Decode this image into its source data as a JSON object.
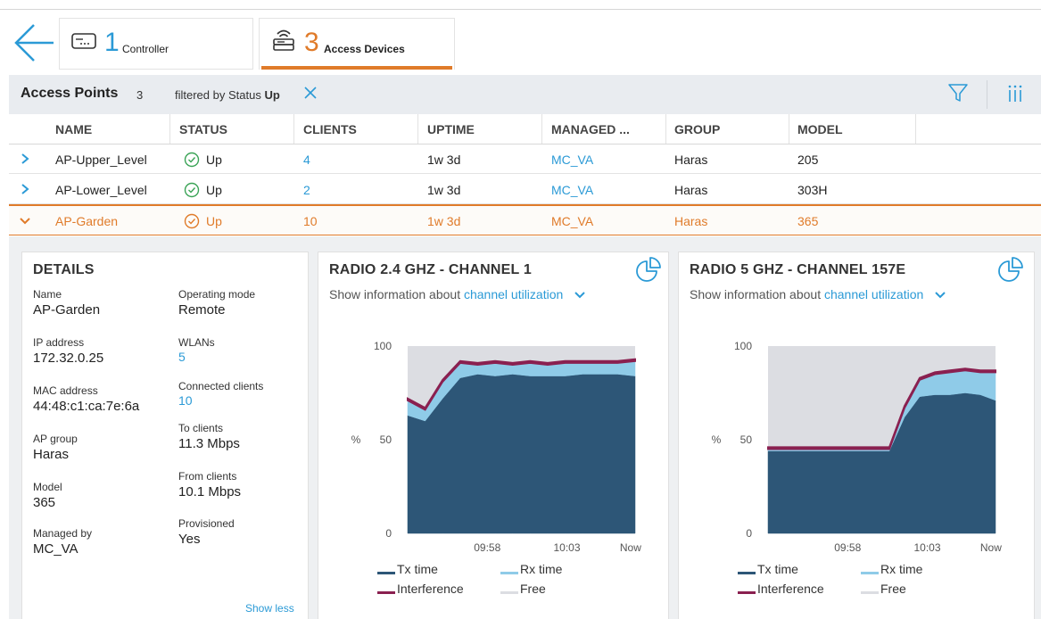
{
  "tabs": [
    {
      "count": "1",
      "label": "Controller",
      "icon": "controller-icon"
    },
    {
      "count": "3",
      "label": "Access Devices",
      "icon": "access-device-icon"
    }
  ],
  "header": {
    "title": "Access Points",
    "count": "3",
    "filter_prefix": "filtered by Status",
    "filter_value": "Up"
  },
  "columns": [
    "NAME",
    "STATUS",
    "CLIENTS",
    "UPTIME",
    "MANAGED ...",
    "GROUP",
    "MODEL"
  ],
  "rows": [
    {
      "name": "AP-Upper_Level",
      "status": "Up",
      "clients": "4",
      "uptime": "1w 3d",
      "managed": "MC_VA",
      "group": "Haras",
      "model": "205"
    },
    {
      "name": "AP-Lower_Level",
      "status": "Up",
      "clients": "2",
      "uptime": "1w 3d",
      "managed": "MC_VA",
      "group": "Haras",
      "model": "303H"
    },
    {
      "name": "AP-Garden",
      "status": "Up",
      "clients": "10",
      "uptime": "1w 3d",
      "managed": "MC_VA",
      "group": "Haras",
      "model": "365"
    }
  ],
  "details": {
    "title": "DETAILS",
    "left": [
      {
        "k": "Name",
        "v": "AP-Garden"
      },
      {
        "k": "IP address",
        "v": "172.32.0.25"
      },
      {
        "k": "MAC address",
        "v": "44:48:c1:ca:7e:6a"
      },
      {
        "k": "AP group",
        "v": "Haras"
      },
      {
        "k": "Model",
        "v": "365"
      },
      {
        "k": "Managed by",
        "v": "MC_VA"
      }
    ],
    "right": [
      {
        "k": "Operating mode",
        "v": "Remote"
      },
      {
        "k": "WLANs",
        "v": "5"
      },
      {
        "k": "Connected clients",
        "v": "10"
      },
      {
        "k": "To clients",
        "v": "11.3 Mbps"
      },
      {
        "k": "From clients",
        "v": "10.1 Mbps"
      },
      {
        "k": "Provisioned",
        "v": "Yes"
      }
    ],
    "show_less": "Show less"
  },
  "radio_cards": [
    {
      "title": "RADIO 2.4 GHZ - CHANNEL 1",
      "show_info_prefix": "Show information about",
      "show_info_value": "channel utilization"
    },
    {
      "title": "RADIO 5 GHZ - CHANNEL 157E",
      "show_info_prefix": "Show information about",
      "show_info_value": "channel utilization"
    }
  ],
  "colors": {
    "accent": "#e07b2a",
    "link": "#2b9ad6",
    "tx": "#2d5677",
    "rx": "#8fcbe8",
    "interference": "#8a2050",
    "free": "#dcdde2",
    "ok_green": "#3aa356"
  },
  "chart_data": [
    {
      "type": "area",
      "title": "RADIO 2.4 GHZ - CHANNEL 1",
      "ylabel": "%",
      "ylim": [
        0,
        100
      ],
      "yticks": [
        "0",
        "50",
        "100"
      ],
      "xticks": [
        "09:58",
        "10:03",
        "Now"
      ],
      "legend": [
        "Tx time",
        "Rx time",
        "Interference",
        "Free"
      ],
      "series": [
        {
          "name": "Tx time",
          "values": [
            63,
            60,
            72,
            83,
            85,
            84,
            85,
            84,
            84,
            84,
            85,
            85,
            85,
            84
          ]
        },
        {
          "name": "Rx time",
          "values": [
            8,
            6,
            9,
            8,
            5,
            7,
            5,
            7,
            6,
            7,
            6,
            6,
            6,
            8
          ]
        },
        {
          "name": "Interference",
          "values": [
            1,
            1,
            1,
            1,
            1,
            1,
            1,
            1,
            1,
            1,
            1,
            1,
            1,
            1
          ]
        }
      ]
    },
    {
      "type": "area",
      "title": "RADIO 5 GHZ - CHANNEL 157E",
      "ylabel": "%",
      "ylim": [
        0,
        100
      ],
      "yticks": [
        "0",
        "50",
        "100"
      ],
      "xticks": [
        "09:58",
        "10:03",
        "Now"
      ],
      "legend": [
        "Tx time",
        "Rx time",
        "Interference",
        "Free"
      ],
      "series": [
        {
          "name": "Tx time",
          "values": [
            44,
            44,
            44,
            44,
            44,
            44,
            44,
            44,
            44,
            62,
            73,
            74,
            74,
            75,
            74,
            71
          ]
        },
        {
          "name": "Rx time",
          "values": [
            1,
            1,
            1,
            1,
            1,
            1,
            1,
            1,
            1,
            5,
            9,
            11,
            12,
            12,
            12,
            15
          ]
        },
        {
          "name": "Interference",
          "values": [
            1,
            1,
            1,
            1,
            1,
            1,
            1,
            1,
            1,
            1,
            1,
            1,
            1,
            1,
            1,
            1
          ]
        }
      ]
    }
  ]
}
